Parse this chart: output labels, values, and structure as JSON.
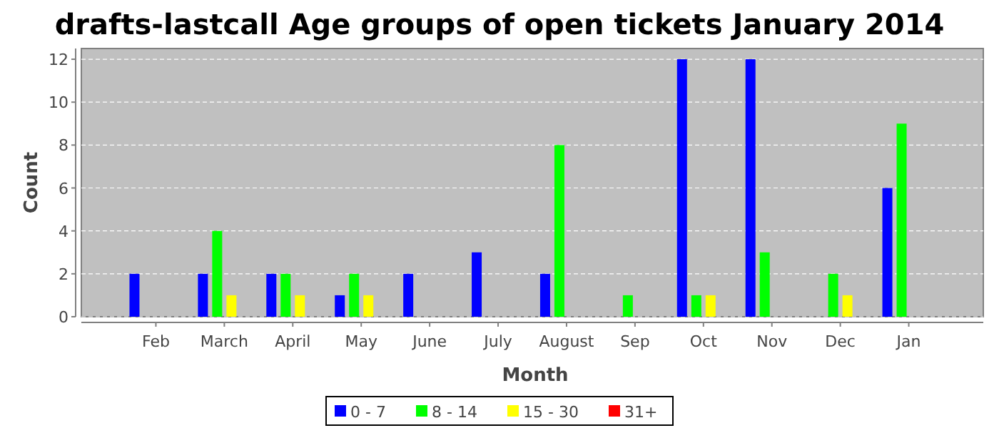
{
  "chart_data": {
    "type": "bar",
    "title": "drafts-lastcall Age groups of open tickets January 2014",
    "xlabel": "Month",
    "ylabel": "Count",
    "categories": [
      "Feb",
      "March",
      "April",
      "May",
      "June",
      "July",
      "August",
      "Sep",
      "Oct",
      "Nov",
      "Dec",
      "Jan"
    ],
    "series": [
      {
        "name": "0 - 7",
        "color": "#0000ff",
        "values": [
          2,
          2,
          2,
          1,
          2,
          3,
          2,
          0,
          12,
          12,
          0,
          6
        ]
      },
      {
        "name": "8 - 14",
        "color": "#00ff00",
        "values": [
          0,
          4,
          2,
          2,
          0,
          0,
          8,
          1,
          1,
          3,
          2,
          9
        ]
      },
      {
        "name": "15 - 30",
        "color": "#ffff00",
        "values": [
          0,
          1,
          1,
          1,
          0,
          0,
          0,
          0,
          1,
          0,
          1,
          0
        ]
      },
      {
        "name": "31+",
        "color": "#ff0000",
        "values": [
          0,
          0,
          0,
          0,
          0,
          0,
          0,
          0,
          0,
          0,
          0,
          0
        ]
      }
    ],
    "ylim": [
      0,
      12.5
    ],
    "yticks": [
      0,
      2,
      4,
      6,
      8,
      10,
      12
    ],
    "grid": "y",
    "legend": "bottom"
  }
}
